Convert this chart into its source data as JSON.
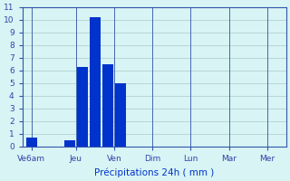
{
  "x_positions": [
    0.5,
    3.5,
    4.5,
    5.5,
    6.5,
    7.5
  ],
  "bar_values": [
    0.7,
    0.5,
    6.3,
    10.2,
    6.5,
    5.0
  ],
  "tick_labels": [
    "Ve6am",
    "Jeu",
    "Ven",
    "Dim",
    "Lun",
    "Mar",
    "Mer"
  ],
  "tick_positions": [
    0.5,
    4.0,
    7.0,
    10.0,
    13.0,
    16.0,
    19.0
  ],
  "bar_color": "#0033cc",
  "bg_color": "#d8f4f4",
  "grid_color": "#aacaca",
  "xlabel": "Précipitations 24h ( mm )",
  "ylim": [
    0,
    11
  ],
  "xlim": [
    -0.2,
    20.5
  ],
  "yticks": [
    0,
    1,
    2,
    3,
    4,
    5,
    6,
    7,
    8,
    9,
    10,
    11
  ],
  "bar_width": 0.85,
  "xlabel_color": "#0033cc",
  "tick_color": "#3344aa",
  "axis_color": "#3355aa",
  "tick_fontsize": 6.5,
  "xlabel_fontsize": 7.5,
  "ylabel_fontsize": 7
}
